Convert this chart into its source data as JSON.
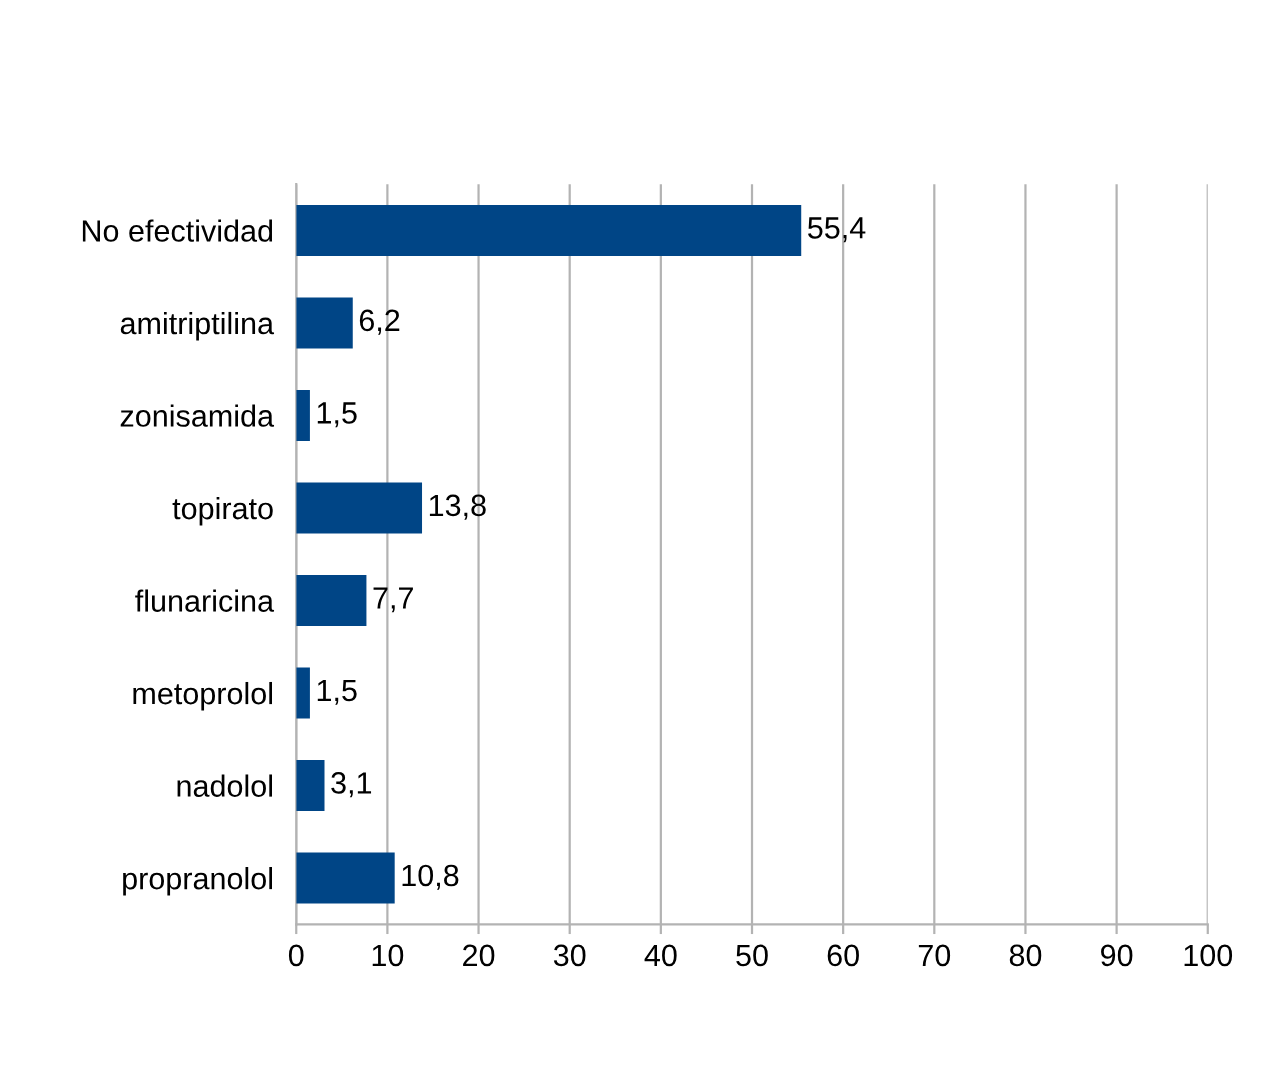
{
  "chart_data": {
    "type": "bar",
    "orientation": "horizontal",
    "categories": [
      "No efectividad",
      "amitriptilina",
      "zonisamida",
      "topirato",
      "flunaricina",
      "metoprolol",
      "nadolol",
      "propranolol"
    ],
    "values": [
      55.4,
      6.2,
      1.5,
      13.8,
      7.7,
      1.5,
      3.1,
      10.8
    ],
    "value_labels": [
      "55,4",
      "6,2",
      "1,5",
      "13,8",
      "7,7",
      "1,5",
      "3,1",
      "10,8"
    ],
    "color": "#004586",
    "xlim": [
      0,
      100
    ],
    "xticks": [
      0,
      10,
      20,
      30,
      40,
      50,
      60,
      70,
      80,
      90,
      100
    ],
    "grid": "x",
    "legend": false
  }
}
